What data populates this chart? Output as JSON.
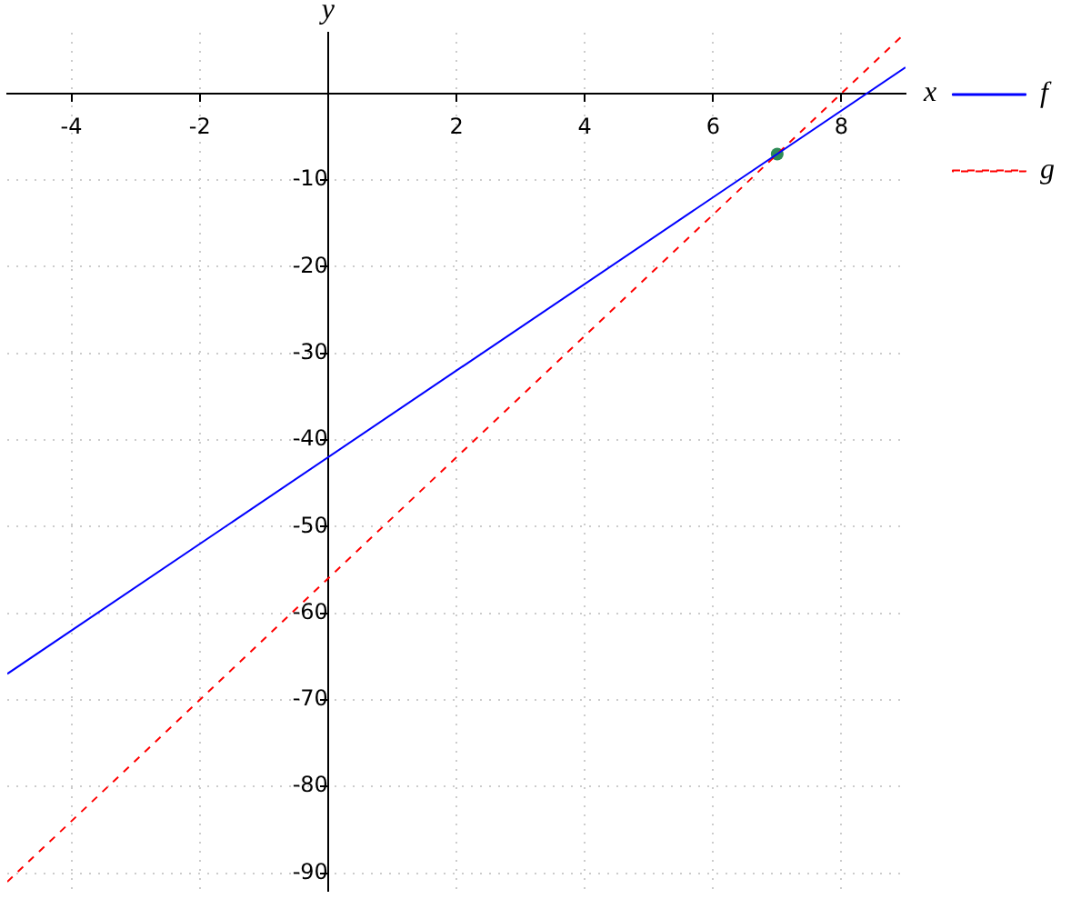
{
  "chart_data": {
    "type": "line",
    "xlabel": "x",
    "ylabel": "y",
    "xlim": [
      -5,
      9
    ],
    "ylim": [
      -92,
      7
    ],
    "xticks": [
      -4,
      -2,
      2,
      4,
      6,
      8
    ],
    "yticks": [
      -90,
      -80,
      -70,
      -60,
      -50,
      -40,
      -30,
      -20,
      -10
    ],
    "grid": true,
    "legend": "right",
    "series": [
      {
        "name": "f",
        "type": "line",
        "color": "#0000ff",
        "line_style": "solid",
        "x": [
          -5,
          9
        ],
        "values": [
          -67,
          3
        ]
      },
      {
        "name": "g",
        "type": "line",
        "color": "#ff0000",
        "line_style": "dashed",
        "x": [
          -5,
          9
        ],
        "values": [
          -91,
          7
        ]
      },
      {
        "type": "scatter",
        "color": "#2e8b57",
        "marker": "circle",
        "x": [
          7
        ],
        "values": [
          -7
        ]
      }
    ]
  }
}
